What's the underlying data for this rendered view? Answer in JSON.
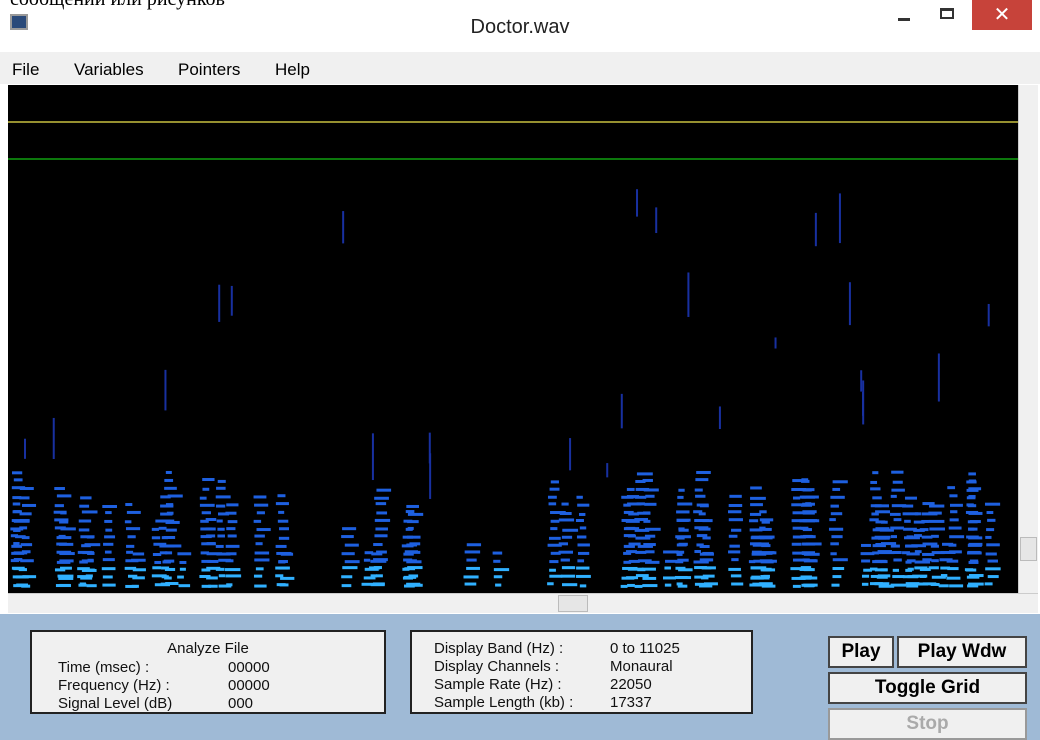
{
  "background_text": "сообщений или рисунков",
  "window": {
    "title": "Doctor.wav"
  },
  "menu": [
    "File",
    "Variables",
    "Pointers",
    "Help"
  ],
  "analyze_panel": {
    "title": "Analyze File",
    "rows": [
      [
        "Time (msec) :",
        "00000"
      ],
      [
        "Frequency (Hz) :",
        "00000"
      ],
      [
        "Signal Level (dB)",
        "000"
      ]
    ]
  },
  "display_panel": {
    "rows": [
      [
        "Display Band (Hz) :",
        "0 to 11025"
      ],
      [
        "Display Channels :",
        "Monaural"
      ],
      [
        "Sample Rate (Hz) :",
        "22050"
      ],
      [
        "Sample Length (kb) :",
        "17337"
      ]
    ]
  },
  "buttons": {
    "play": "Play",
    "play_wdw": "Play Wdw",
    "toggle_grid": "Toggle Grid",
    "stop": "Stop"
  }
}
